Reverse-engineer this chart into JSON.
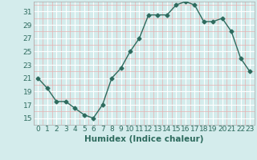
{
  "x": [
    0,
    1,
    2,
    3,
    4,
    5,
    6,
    7,
    8,
    9,
    10,
    11,
    12,
    13,
    14,
    15,
    16,
    17,
    18,
    19,
    20,
    21,
    22,
    23
  ],
  "y": [
    21,
    19.5,
    17.5,
    17.5,
    16.5,
    15.5,
    15,
    17,
    21,
    22.5,
    25,
    27,
    30.5,
    30.5,
    30.5,
    32,
    32.5,
    32,
    29.5,
    29.5,
    30,
    28,
    24,
    22
  ],
  "line_color": "#2e6b5e",
  "marker": "D",
  "marker_size": 2.5,
  "bg_color": "#d4ecec",
  "grid_major_color": "#ffffff",
  "grid_minor_color": "#e8b0b0",
  "xlabel": "Humidex (Indice chaleur)",
  "ylim": [
    14,
    32.5
  ],
  "xlim": [
    -0.5,
    23.5
  ],
  "yticks": [
    15,
    17,
    19,
    21,
    23,
    25,
    27,
    29,
    31
  ],
  "xticks": [
    0,
    1,
    2,
    3,
    4,
    5,
    6,
    7,
    8,
    9,
    10,
    11,
    12,
    13,
    14,
    15,
    16,
    17,
    18,
    19,
    20,
    21,
    22,
    23
  ],
  "tick_fontsize": 6.5,
  "label_fontsize": 7.5
}
